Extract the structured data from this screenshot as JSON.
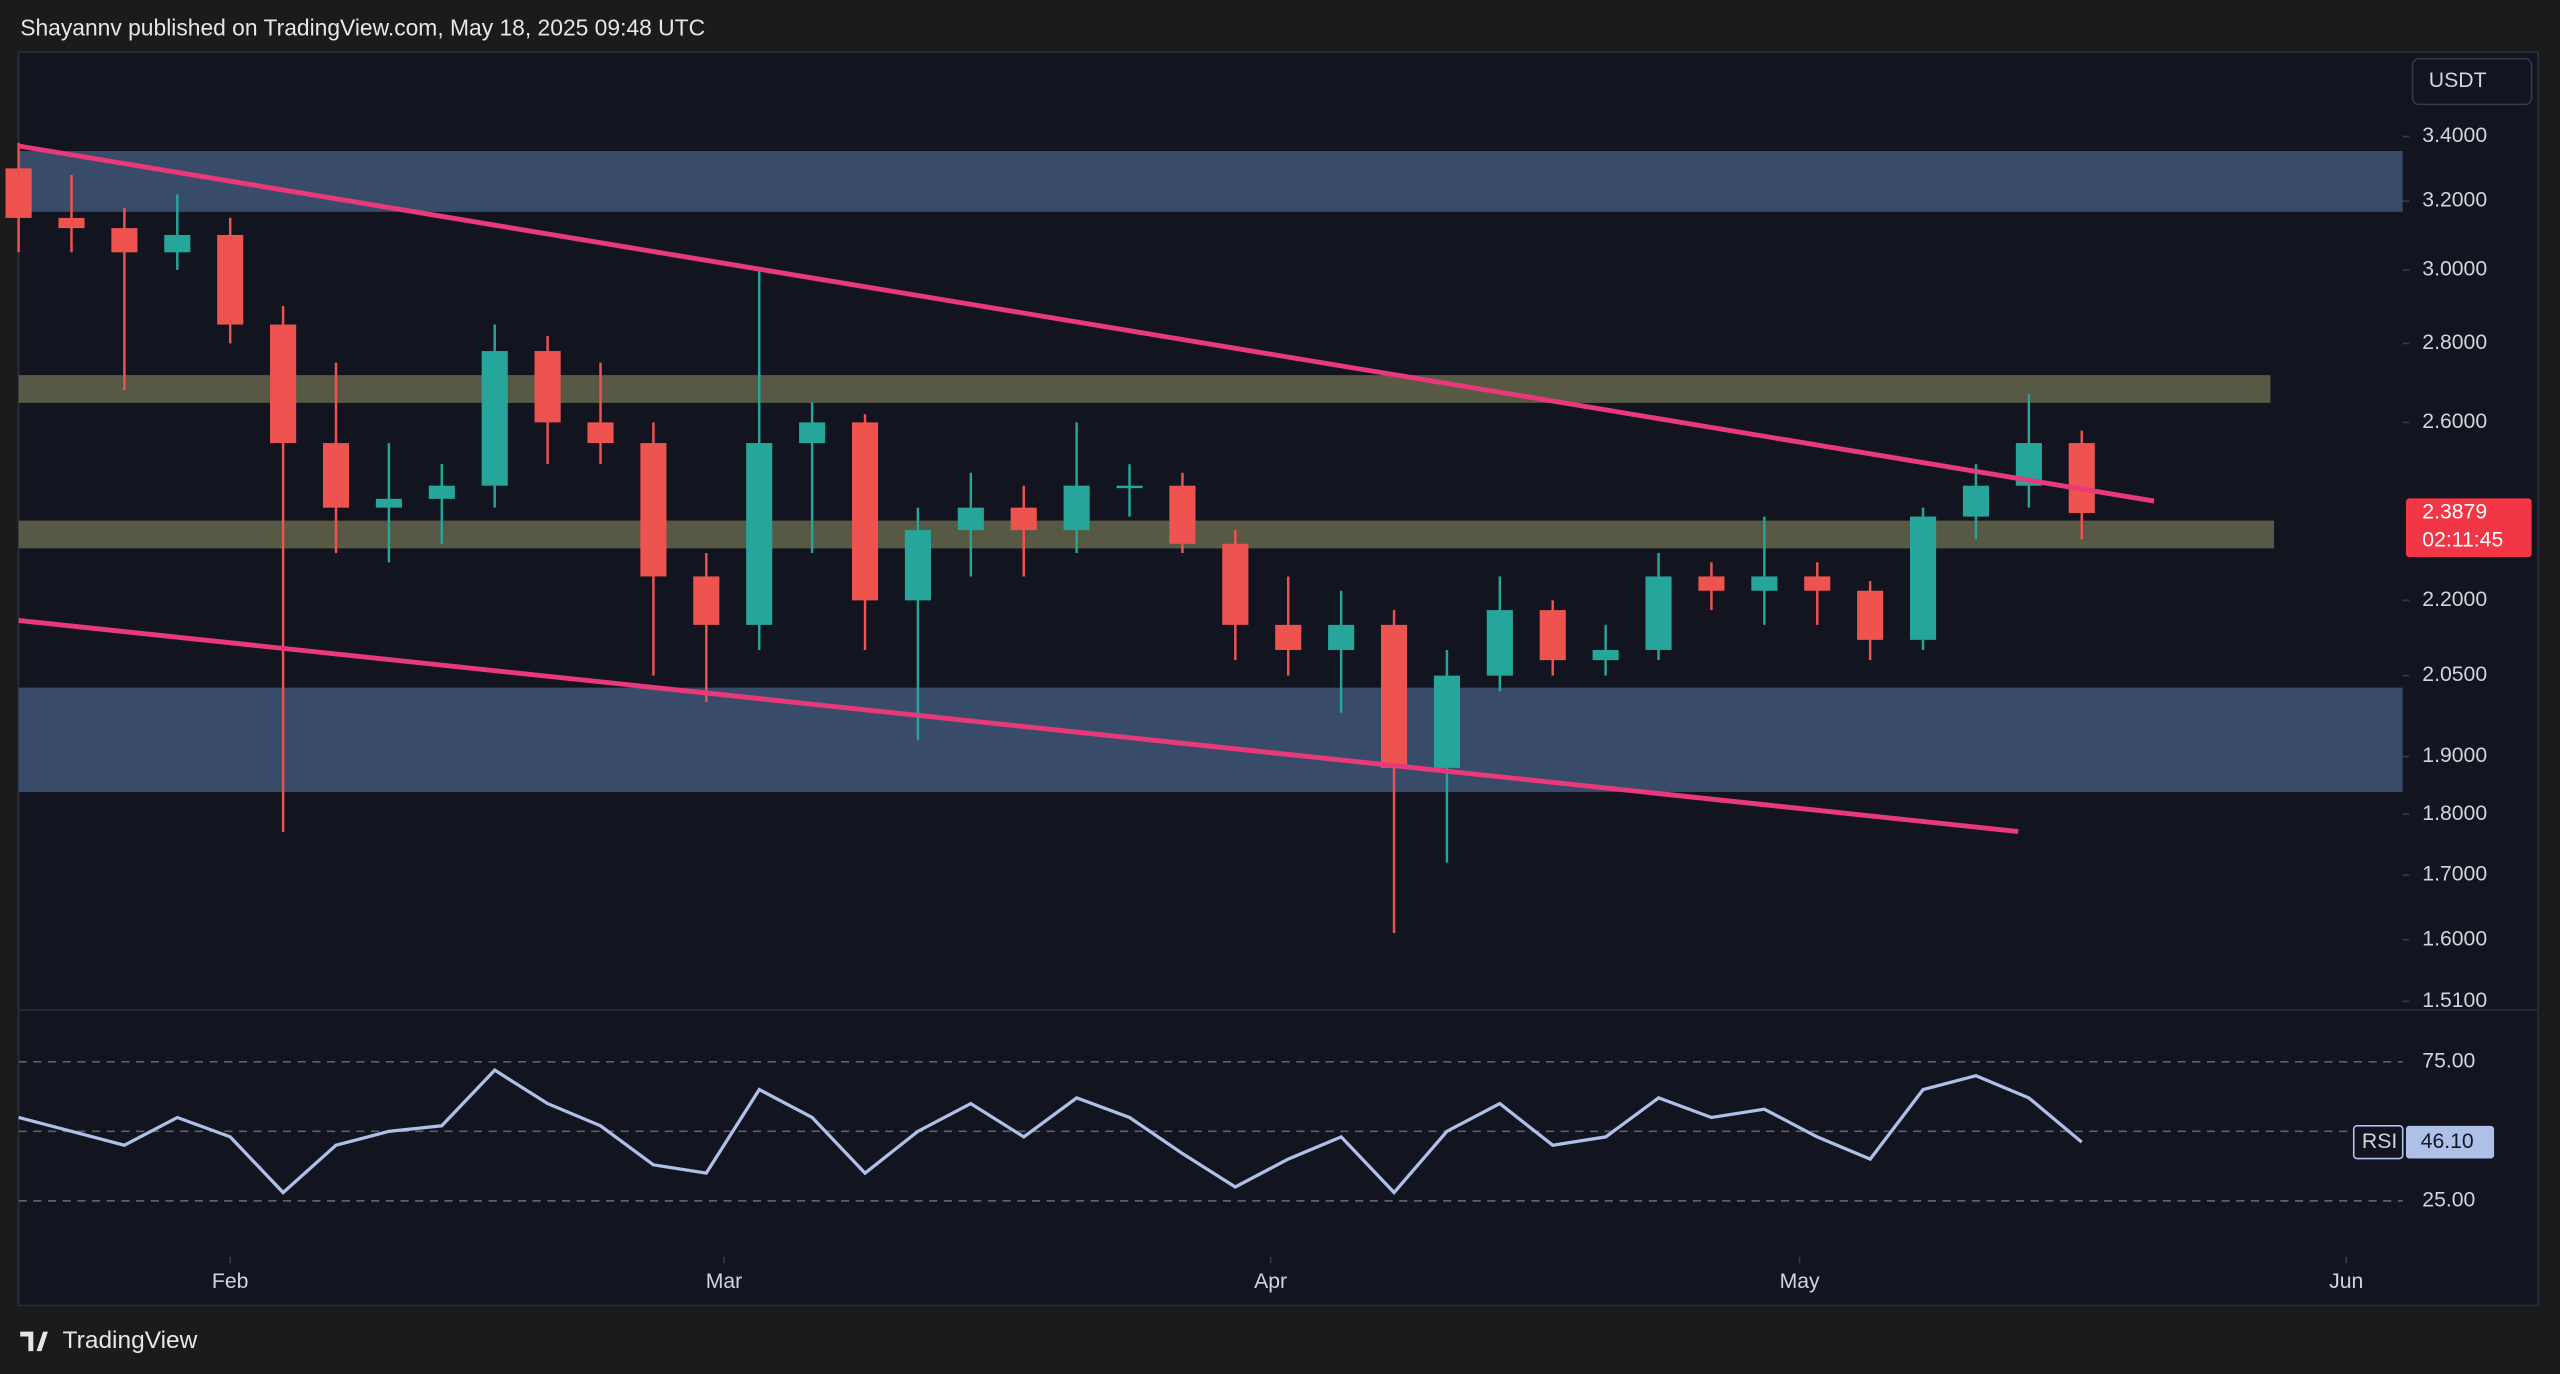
{
  "header": "Shayannv published on TradingView.com, May 18, 2025 09:48 UTC",
  "footer": "TradingView",
  "chart_data": [
    {
      "type": "candlestick",
      "currency": "USDT",
      "log_scale": true,
      "up_color": "#26a69a",
      "down_color": "#ef5350",
      "x": [
        20,
        23,
        26,
        29,
        32,
        35,
        38,
        41,
        44,
        47,
        50,
        53,
        56,
        59,
        62,
        65,
        68,
        71,
        74,
        77,
        80,
        83,
        86,
        89,
        92,
        95,
        98,
        101,
        104,
        107,
        110,
        113,
        116,
        119,
        122,
        125,
        128,
        131,
        134,
        137
      ],
      "open": [
        3.3,
        3.15,
        3.12,
        3.05,
        3.1,
        2.85,
        2.55,
        2.4,
        2.42,
        2.45,
        2.78,
        2.6,
        2.55,
        2.25,
        2.15,
        2.55,
        2.6,
        2.2,
        2.35,
        2.4,
        2.35,
        2.45,
        2.45,
        2.32,
        2.15,
        2.1,
        2.15,
        1.88,
        2.05,
        2.18,
        2.08,
        2.1,
        2.25,
        2.22,
        2.25,
        2.22,
        2.12,
        2.38,
        2.45,
        2.55
      ],
      "high": [
        3.38,
        3.28,
        3.18,
        3.22,
        3.15,
        2.9,
        2.75,
        2.55,
        2.5,
        2.85,
        2.82,
        2.75,
        2.6,
        2.3,
        3.0,
        2.65,
        2.62,
        2.4,
        2.48,
        2.45,
        2.6,
        2.5,
        2.48,
        2.35,
        2.25,
        2.22,
        2.18,
        2.1,
        2.25,
        2.2,
        2.15,
        2.3,
        2.28,
        2.38,
        2.28,
        2.24,
        2.4,
        2.5,
        2.67,
        2.58
      ],
      "low": [
        3.05,
        3.05,
        2.68,
        3.0,
        2.8,
        1.77,
        2.3,
        2.28,
        2.32,
        2.4,
        2.5,
        2.5,
        2.05,
        2.0,
        2.1,
        2.3,
        2.1,
        1.93,
        2.25,
        2.25,
        2.3,
        2.38,
        2.3,
        2.08,
        2.05,
        1.98,
        1.61,
        1.72,
        2.02,
        2.05,
        2.05,
        2.08,
        2.18,
        2.15,
        2.15,
        2.08,
        2.1,
        2.33,
        2.4,
        2.33
      ],
      "close": [
        3.15,
        3.12,
        3.05,
        3.1,
        2.85,
        2.55,
        2.4,
        2.42,
        2.45,
        2.78,
        2.6,
        2.55,
        2.25,
        2.15,
        2.55,
        2.6,
        2.2,
        2.35,
        2.4,
        2.35,
        2.45,
        2.45,
        2.32,
        2.15,
        2.1,
        2.15,
        1.88,
        2.05,
        2.18,
        2.08,
        2.1,
        2.25,
        2.22,
        2.25,
        2.22,
        2.12,
        2.38,
        2.45,
        2.55,
        2.3879
      ],
      "countdown": "02:11:45",
      "xlim": [
        20,
        155.2
      ],
      "ylim": [
        1.5,
        3.68
      ],
      "yticks": [
        {
          "value": 3.4,
          "label": "3.4000"
        },
        {
          "value": 3.2,
          "label": "3.2000"
        },
        {
          "value": 3.0,
          "label": "3.0000"
        },
        {
          "value": 2.8,
          "label": "2.8000"
        },
        {
          "value": 2.6,
          "label": "2.6000"
        },
        {
          "value": 2.2,
          "label": "2.2000"
        },
        {
          "value": 2.05,
          "label": "2.0500"
        },
        {
          "value": 1.9,
          "label": "1.9000"
        },
        {
          "value": 1.8,
          "label": "1.8000"
        },
        {
          "value": 1.7,
          "label": "1.7000"
        },
        {
          "value": 1.6,
          "label": "1.6000"
        },
        {
          "value": 1.51,
          "label": "1.5100"
        }
      ],
      "zones": [
        {
          "low": 3.168,
          "high": 3.354,
          "x": [
            20,
            155.2
          ],
          "color": "#3d5272"
        },
        {
          "low": 2.648,
          "high": 2.718,
          "x": [
            20,
            147.7
          ],
          "color": "#5f6148"
        },
        {
          "low": 2.31,
          "high": 2.371,
          "x": [
            20,
            147.9
          ],
          "color": "#5f6148"
        },
        {
          "low": 1.838,
          "high": 2.027,
          "x": [
            20,
            155.2
          ],
          "color": "#3d5272"
        }
      ],
      "lines": [
        {
          "x": [
            20,
            141.1
          ],
          "y": [
            3.37,
            2.415
          ],
          "color": "#e8397a"
        },
        {
          "x": [
            20,
            133.4
          ],
          "y": [
            2.159,
            1.771
          ],
          "color": "#e8397a"
        }
      ]
    },
    {
      "type": "line",
      "name": "RSI",
      "color": "#aebfe8",
      "x": [
        20,
        23,
        26,
        29,
        32,
        35,
        38,
        41,
        44,
        47,
        50,
        53,
        56,
        59,
        62,
        65,
        68,
        71,
        74,
        77,
        80,
        83,
        86,
        89,
        92,
        95,
        98,
        101,
        104,
        107,
        110,
        113,
        116,
        119,
        122,
        125,
        128,
        131,
        134,
        137
      ],
      "values": [
        55,
        50,
        45,
        55,
        48,
        28,
        45,
        50,
        52,
        72,
        60,
        52,
        38,
        35,
        65,
        55,
        35,
        50,
        60,
        48,
        62,
        55,
        42,
        30,
        40,
        48,
        28,
        50,
        60,
        45,
        48,
        62,
        55,
        58,
        48,
        40,
        65,
        70,
        62,
        46.1
      ],
      "last_value_label": "46.10",
      "levels": [
        75,
        50,
        25
      ],
      "xlim": [
        20,
        155.2
      ],
      "ylim": [
        5,
        93
      ],
      "yticks": [
        {
          "value": 75,
          "label": "75.00"
        },
        {
          "value": 25,
          "label": "25.00"
        }
      ],
      "xticks": [
        {
          "value": 32,
          "label": "Feb"
        },
        {
          "value": 60,
          "label": "Mar"
        },
        {
          "value": 91,
          "label": "Apr"
        },
        {
          "value": 121,
          "label": "May"
        },
        {
          "value": 152,
          "label": "Jun"
        }
      ]
    }
  ]
}
